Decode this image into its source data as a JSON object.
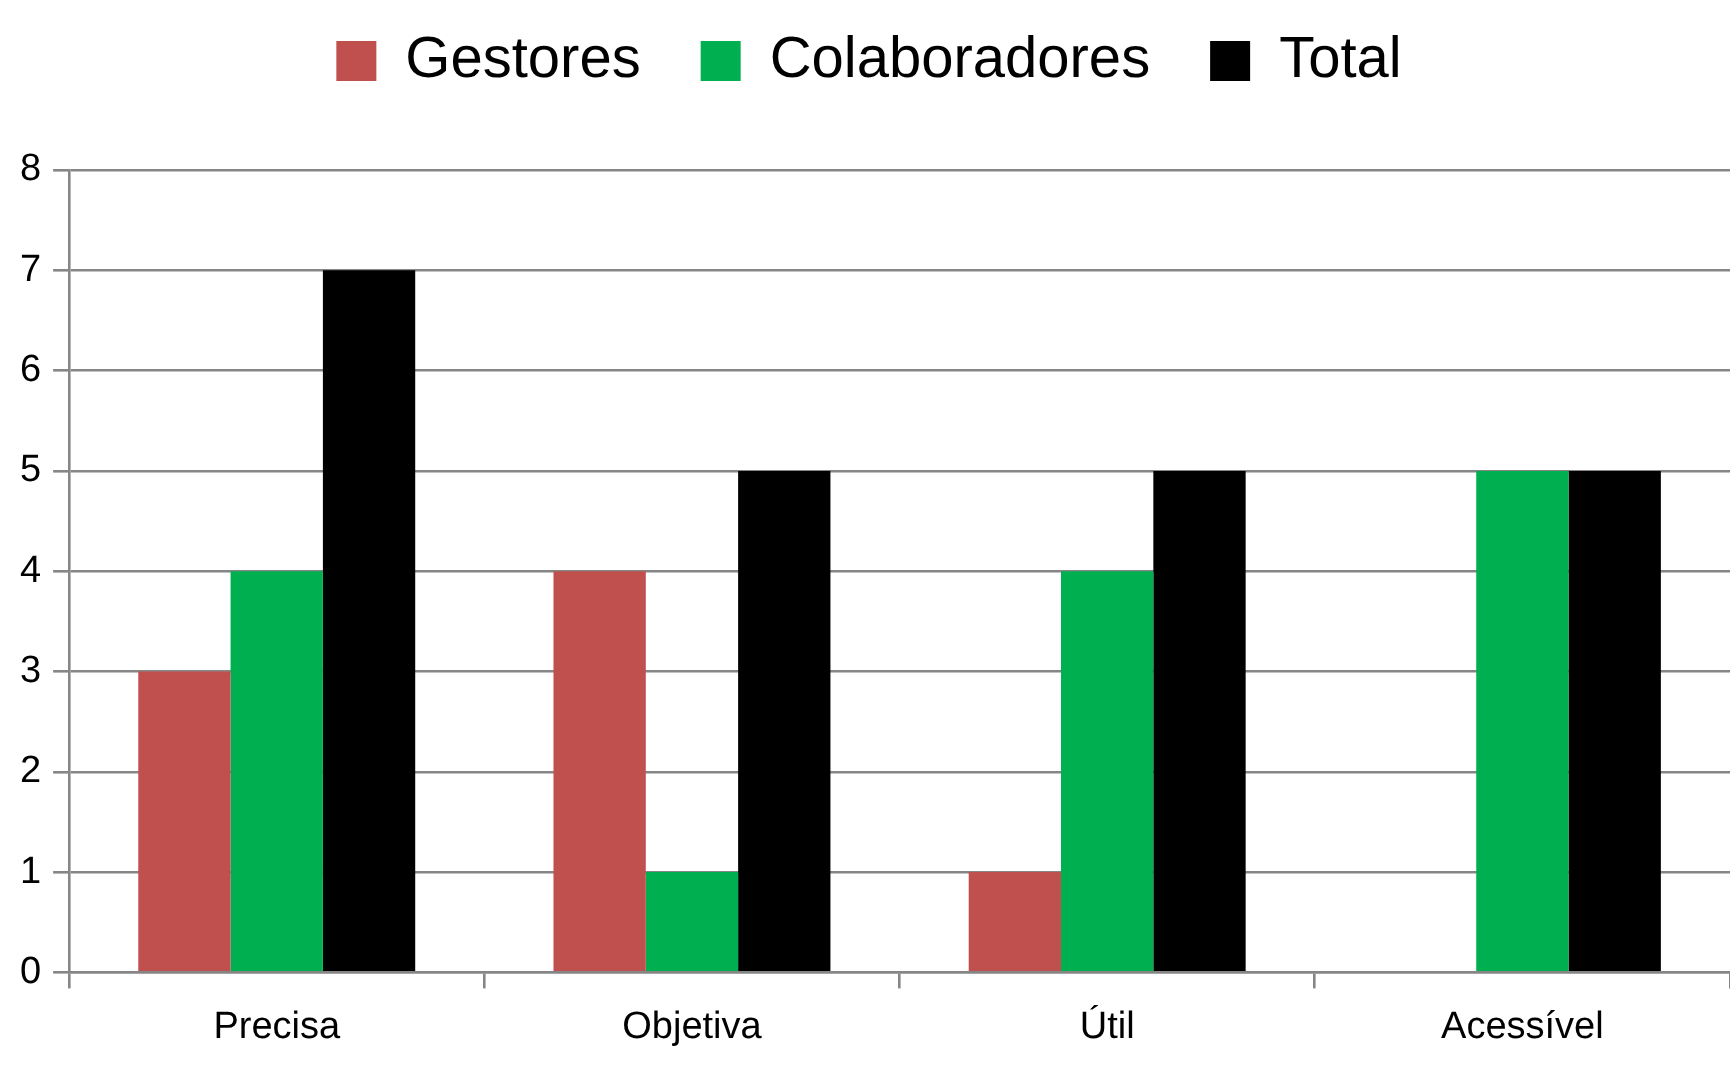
{
  "chart_data": {
    "type": "bar",
    "categories": [
      "Precisa",
      "Objetiva",
      "Útil",
      "Acessível"
    ],
    "series": [
      {
        "name": "Gestores",
        "color": "#c0504d",
        "values": [
          3,
          4,
          1,
          0
        ]
      },
      {
        "name": "Colaboradores",
        "color": "#00b050",
        "values": [
          4,
          1,
          4,
          5
        ]
      },
      {
        "name": "Total",
        "color": "#000000",
        "values": [
          7,
          5,
          5,
          5
        ]
      }
    ],
    "ylim": [
      0,
      8
    ],
    "yticks": [
      0,
      1,
      2,
      3,
      4,
      5,
      6,
      7,
      8
    ],
    "grid": "y",
    "legend": "top"
  }
}
